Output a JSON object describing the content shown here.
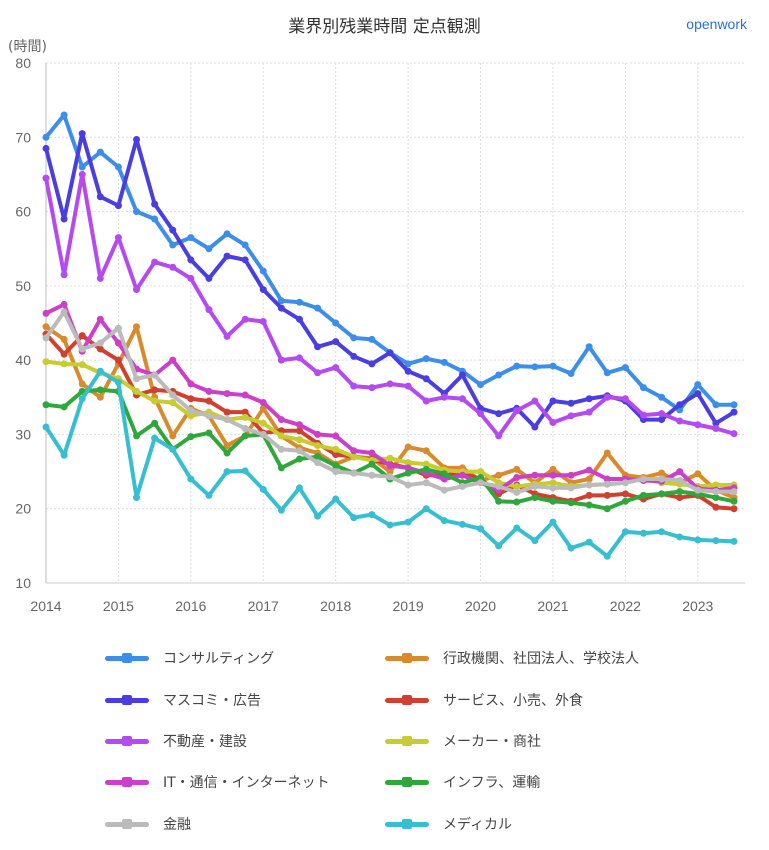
{
  "chart_data": {
    "type": "line",
    "title": "業界別残業時間 定点観測",
    "brand": "openwork",
    "ylabel": "(時間)",
    "ylim": [
      10,
      80
    ],
    "yticks": [
      10,
      20,
      30,
      40,
      50,
      60,
      70,
      80
    ],
    "xlim": [
      2014,
      2023.5
    ],
    "xticks": [
      "2014",
      "2015",
      "2016",
      "2017",
      "2018",
      "2019",
      "2020",
      "2021",
      "2022",
      "2023"
    ],
    "x_start": 2014,
    "x_step": 0.25,
    "grid": true,
    "legend_position": "bottom",
    "series": [
      {
        "name": "コンサルティング",
        "color": "#3d8ee8",
        "values": [
          70,
          73,
          66,
          68,
          66,
          60,
          59,
          55.5,
          56.5,
          55,
          57,
          55.5,
          52,
          48,
          47.8,
          47,
          45,
          43,
          42.8,
          41,
          39.5,
          40.2,
          39.7,
          38.5,
          36.7,
          38,
          39.2,
          39.1,
          39.2,
          38.2,
          41.8,
          38.3,
          39,
          36.3,
          35,
          33.3,
          36.7,
          34,
          34
        ]
      },
      {
        "name": "行政機関、社団法人、学校法人",
        "color": "#d88a2e",
        "values": [
          44.5,
          42.8,
          36.8,
          35,
          39.5,
          44.5,
          35,
          29.8,
          33.5,
          32.5,
          28.5,
          29.8,
          33.5,
          29.8,
          28.2,
          27.5,
          26,
          27,
          26.8,
          25,
          28.3,
          27.8,
          25.5,
          25.5,
          23.8,
          24.5,
          25.3,
          23.5,
          25.3,
          23.5,
          24,
          27.5,
          24.5,
          24.2,
          24.8,
          23.5,
          24.7,
          22.5,
          21.5
        ]
      },
      {
        "name": "マスコミ・広告",
        "color": "#4a3ee0",
        "values": [
          68.5,
          59,
          70.5,
          62,
          60.8,
          69.7,
          61,
          57.5,
          53.5,
          51,
          54,
          53.5,
          49.5,
          47,
          45.5,
          41.8,
          42.5,
          40.5,
          39.5,
          41,
          38.5,
          37.5,
          35.5,
          38,
          33.5,
          32.8,
          33.5,
          31,
          34.5,
          34.2,
          34.8,
          35.2,
          34.5,
          32,
          32,
          34,
          35.5,
          31.5,
          33
        ]
      },
      {
        "name": "サービス、小売、外食",
        "color": "#d04030",
        "values": [
          43.5,
          40.8,
          43.3,
          41.5,
          40,
          35.3,
          36,
          35.8,
          34.8,
          34.5,
          33,
          33,
          30.2,
          30.5,
          30.5,
          28.8,
          27.3,
          27,
          26.6,
          26,
          25.5,
          24.5,
          24.5,
          24.8,
          24,
          22,
          23.2,
          22,
          21.5,
          21,
          21.8,
          21.8,
          22,
          21.3,
          22,
          21.5,
          21.8,
          20.2,
          20
        ]
      },
      {
        "name": "不動産・建設",
        "color": "#b44af0",
        "values": [
          64.5,
          51.5,
          65,
          51,
          56.5,
          49.5,
          53.2,
          52.5,
          51,
          46.8,
          43.2,
          45.5,
          45.2,
          40,
          40.3,
          38.3,
          39,
          36.5,
          36.3,
          36.8,
          36.5,
          34.5,
          35,
          34.8,
          32.8,
          29.8,
          33.2,
          34.5,
          31.6,
          32.5,
          33,
          35,
          34.8,
          32.6,
          32.8,
          31.8,
          31.3,
          30.8,
          30.1
        ]
      },
      {
        "name": "メーカー・商社",
        "color": "#c8cc30",
        "values": [
          39.8,
          39.5,
          39.4,
          38.3,
          37.5,
          35.8,
          34.5,
          34.3,
          32.5,
          33,
          32,
          32.3,
          31.5,
          29.8,
          29.3,
          28.5,
          28,
          27,
          26.5,
          26.8,
          26.2,
          26,
          25.2,
          25,
          25,
          23.5,
          23,
          23.3,
          23.5,
          23,
          23.2,
          23.3,
          23.5,
          24,
          23.5,
          23.3,
          23,
          23.2,
          23.2
        ]
      },
      {
        "name": "IT・通信・インターネット",
        "color": "#cc3fc8",
        "values": [
          46.3,
          47.5,
          41.2,
          45.5,
          42.3,
          38.8,
          38,
          40,
          36.8,
          35.8,
          35.5,
          35.3,
          34.3,
          32,
          31.3,
          30,
          29.8,
          27.8,
          27.5,
          25.8,
          25.5,
          24.8,
          24,
          24.5,
          23.5,
          22.5,
          24.2,
          24.5,
          24.5,
          24.5,
          25.2,
          24,
          24,
          23.8,
          23.7,
          25,
          22.7,
          22.5,
          22.8
        ]
      },
      {
        "name": "インフラ、運輸",
        "color": "#2ea83a",
        "values": [
          34,
          33.7,
          35.8,
          36,
          35.8,
          29.8,
          31.5,
          28,
          29.7,
          30.2,
          27.5,
          29.8,
          30,
          25.5,
          26.7,
          27,
          25.8,
          24.8,
          26,
          24,
          24.8,
          25.3,
          24.7,
          23.5,
          24.2,
          21,
          20.9,
          21.5,
          21,
          20.8,
          20.5,
          20,
          21,
          21.8,
          22,
          22.3,
          22,
          21.5,
          21
        ]
      },
      {
        "name": "金融",
        "color": "#bbbbbb",
        "values": [
          43,
          46.5,
          41.5,
          42.3,
          44.3,
          37.5,
          38,
          35.3,
          33.2,
          32.5,
          32,
          30.8,
          30,
          28,
          27.8,
          26.2,
          25,
          24.8,
          24.5,
          24.3,
          23.2,
          23.5,
          22.5,
          23,
          23.5,
          23,
          22.2,
          23,
          22.8,
          22.8,
          23.2,
          23.3,
          23.5,
          24,
          24,
          23.8,
          22.5,
          22.3,
          22.3
        ]
      },
      {
        "name": "メディカル",
        "color": "#36bfd0",
        "values": [
          31,
          27.2,
          34.8,
          38.5,
          37,
          21.5,
          29.5,
          28,
          24,
          21.8,
          25,
          25.1,
          22.6,
          19.8,
          22.8,
          19,
          21.3,
          18.8,
          19.2,
          17.8,
          18.2,
          20,
          18.4,
          17.9,
          17.3,
          15,
          17.4,
          15.7,
          18.2,
          14.7,
          15.5,
          13.6,
          16.9,
          16.7,
          16.9,
          16.2,
          15.8,
          15.7,
          15.6
        ]
      }
    ]
  }
}
